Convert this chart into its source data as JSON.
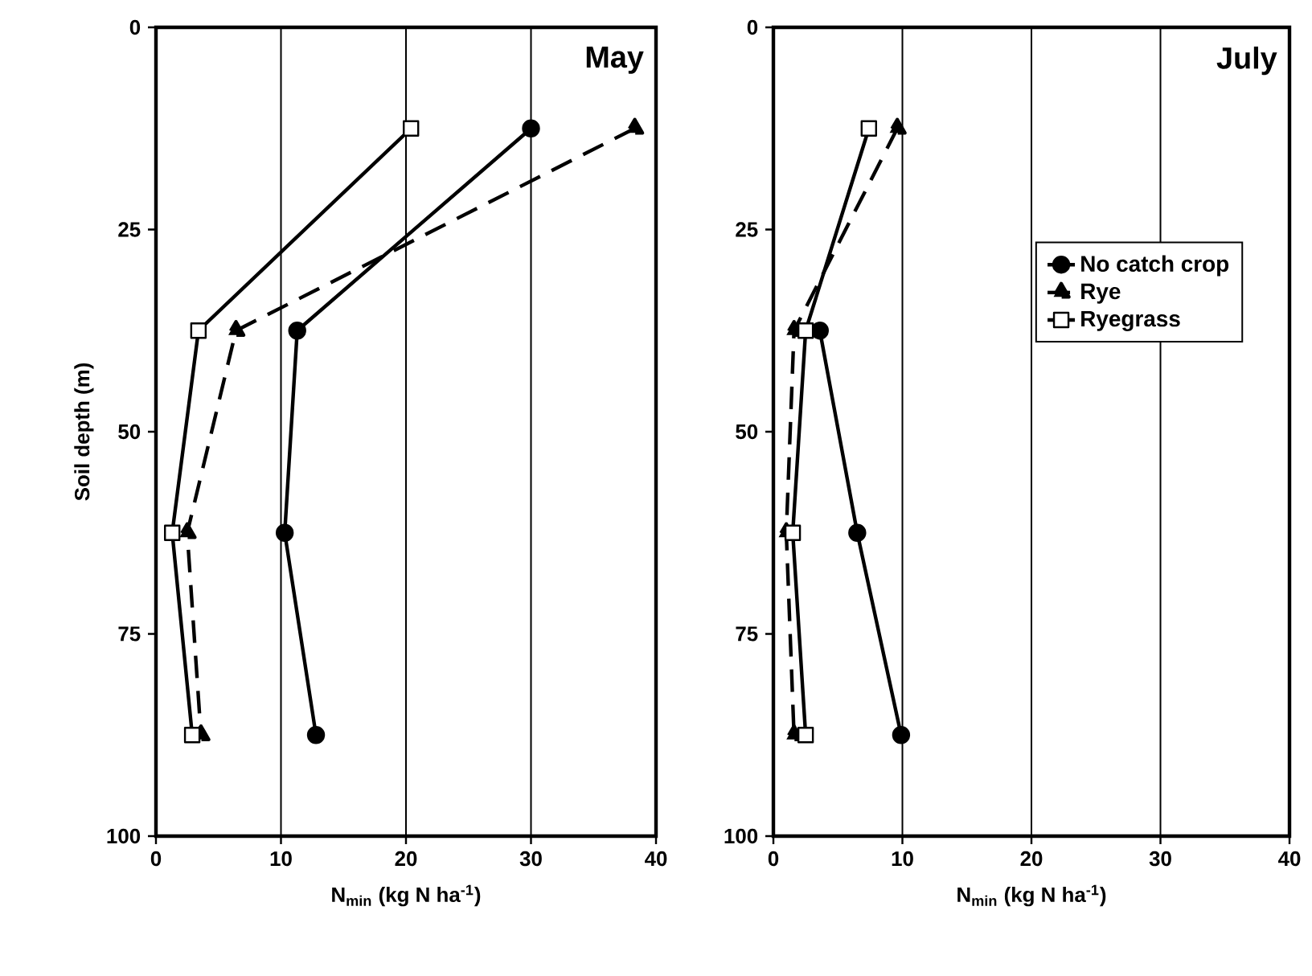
{
  "chart_data": [
    {
      "type": "line",
      "title": "May",
      "ylabel": "Soil depth (m)",
      "xlabel": "N$_{min}$ (kg N ha$^{-1}$)",
      "xlim": [
        0,
        40
      ],
      "xticks": [
        0,
        10,
        20,
        30,
        40
      ],
      "ylim": [
        100,
        0
      ],
      "yticks": [
        0,
        25,
        50,
        75,
        100
      ],
      "grid": "x",
      "legend": false,
      "series": [
        {
          "color": "#000000",
          "marker": "circle",
          "line_style": "solid",
          "x": [
            30.0,
            11.3,
            10.3,
            12.8
          ],
          "values": [
            12.5,
            37.5,
            62.5,
            87.5
          ]
        },
        {
          "color": "#000000",
          "marker": "triangle",
          "line_style": "dashed",
          "x": [
            38.3,
            6.4,
            2.5,
            3.6
          ],
          "values": [
            12.5,
            37.5,
            62.5,
            87.5
          ]
        },
        {
          "color": "#000000",
          "marker": "square",
          "line_style": "solid",
          "x": [
            20.4,
            3.4,
            1.3,
            2.9
          ],
          "values": [
            12.5,
            37.5,
            62.5,
            87.5
          ]
        }
      ]
    },
    {
      "type": "line",
      "title": "July",
      "xlabel": "N$_{min}$ (kg N ha$^{-1}$)",
      "xlim": [
        0,
        40
      ],
      "xticks": [
        0,
        10,
        20,
        30,
        40
      ],
      "ylim": [
        100,
        0
      ],
      "yticks": [
        0,
        25,
        50,
        75,
        100
      ],
      "grid": "x",
      "legend": "top right",
      "series": [
        {
          "name": "No catch crop",
          "color": "#000000",
          "marker": "circle",
          "line_style": "solid",
          "x": [
            3.6,
            6.5,
            9.9
          ],
          "values": [
            37.5,
            62.5,
            87.5
          ]
        },
        {
          "name": "Rye",
          "color": "#000000",
          "marker": "triangle",
          "line_style": "dashed",
          "x": [
            9.6,
            1.6,
            1.0,
            1.6
          ],
          "values": [
            12.5,
            37.5,
            62.5,
            87.5
          ]
        },
        {
          "name": "Ryegrass",
          "color": "#000000",
          "marker": "square",
          "line_style": "solid",
          "x": [
            7.4,
            2.5,
            1.5,
            2.5
          ],
          "values": [
            12.5,
            37.5,
            62.5,
            87.5
          ]
        }
      ]
    }
  ]
}
